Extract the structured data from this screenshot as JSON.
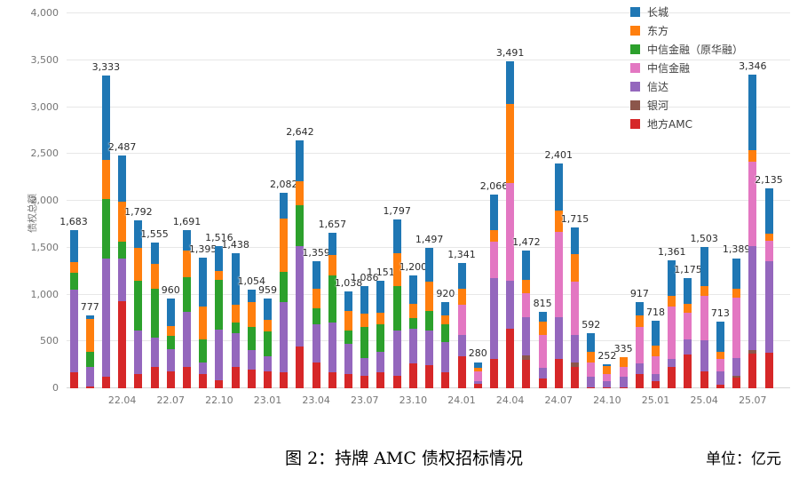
{
  "y_axis": {
    "title": "债权总额",
    "max": 4000,
    "step": 500,
    "tick_labels": [
      "0",
      "500",
      "1,000",
      "1,500",
      "2,000",
      "2,500",
      "3,000",
      "3,500",
      "4,000"
    ]
  },
  "caption": {
    "title": "图 2：持牌 AMC 债权招标情况",
    "unit": "单位：亿元"
  },
  "legend": {
    "position": "top-right",
    "items": [
      {
        "label": "长城",
        "color": "#1f77b4"
      },
      {
        "label": "东方",
        "color": "#ff7f0e"
      },
      {
        "label": "中信金融（原华融）",
        "color": "#2ca02c"
      },
      {
        "label": "中信金融",
        "color": "#e377c2"
      },
      {
        "label": "信达",
        "color": "#9467bd"
      },
      {
        "label": "银河",
        "color": "#8c564b"
      },
      {
        "label": "地方AMC",
        "color": "#d62728"
      }
    ]
  },
  "chart_data": {
    "type": "bar",
    "stacked": true,
    "title": "图 2：持牌 AMC 债权招标情况",
    "unit": "亿元",
    "ylabel": "债权总额",
    "ylim": [
      0,
      4000
    ],
    "grid": true,
    "x": [
      "22.01",
      "22.02",
      "22.03",
      "22.04",
      "22.05",
      "22.06",
      "22.07",
      "22.08",
      "22.09",
      "22.10",
      "22.11",
      "22.12",
      "23.01",
      "23.02",
      "23.03",
      "23.04",
      "23.05",
      "23.06",
      "23.07",
      "23.08",
      "23.09",
      "23.10",
      "23.11",
      "23.12",
      "24.01",
      "24.02",
      "24.03",
      "24.04",
      "24.05",
      "24.06",
      "24.07",
      "24.08",
      "24.09",
      "24.10",
      "24.11",
      "24.12",
      "25.01",
      "25.02",
      "25.03",
      "25.04",
      "25.05",
      "25.06",
      "25.07",
      "25.08"
    ],
    "x_tick_shown": [
      "22.04",
      "22.07",
      "22.10",
      "23.01",
      "23.04",
      "23.07",
      "23.10",
      "24.01",
      "24.04",
      "24.07",
      "24.10",
      "25.01",
      "25.04",
      "25.07"
    ],
    "totals": [
      1683,
      777,
      3333,
      2487,
      1792,
      1555,
      960,
      1691,
      1395,
      1516,
      1438,
      1054,
      959,
      2082,
      2642,
      1359,
      1657,
      1038,
      1086,
      1151,
      1797,
      1200,
      1497,
      920,
      1341,
      280,
      2066,
      3491,
      1472,
      815,
      2401,
      1715,
      592,
      252,
      335,
      917,
      718,
      1361,
      1175,
      1503,
      713,
      1389,
      3346,
      2135
    ],
    "series": [
      {
        "name": "地方AMC",
        "color": "#d62728",
        "values": [
          170,
          20,
          120,
          930,
          150,
          230,
          180,
          230,
          153,
          90,
          230,
          201,
          182,
          172,
          450,
          278,
          172,
          153,
          134,
          172,
          134,
          268,
          249,
          172,
          345,
          50,
          316,
          632,
          307,
          105,
          316,
          230,
          10,
          5,
          8,
          153,
          77,
          230,
          364,
          182,
          38,
          110,
          374,
          383
        ]
      },
      {
        "name": "银河",
        "color": "#8c564b",
        "values": [
          0,
          0,
          0,
          0,
          0,
          0,
          0,
          0,
          0,
          0,
          0,
          0,
          0,
          0,
          0,
          0,
          0,
          0,
          0,
          0,
          0,
          0,
          0,
          0,
          0,
          0,
          0,
          0,
          48,
          0,
          0,
          48,
          0,
          0,
          0,
          0,
          0,
          0,
          0,
          0,
          0,
          25,
          38,
          0
        ]
      },
      {
        "name": "信达",
        "color": "#9467bd",
        "values": [
          880,
          210,
          1260,
          450,
          470,
          310,
          240,
          584,
          125,
          535,
          355,
          211,
          163,
          748,
          1064,
          402,
          528,
          317,
          192,
          221,
          479,
          364,
          364,
          317,
          220,
          25,
          862,
          517,
          402,
          115,
          441,
          287,
          115,
          75,
          115,
          115,
          76,
          86,
          153,
          326,
          144,
          186,
          1102,
          968
        ]
      },
      {
        "name": "中信金融",
        "color": "#e377c2",
        "values": [
          0,
          0,
          0,
          0,
          0,
          0,
          0,
          0,
          0,
          0,
          0,
          0,
          0,
          0,
          0,
          0,
          0,
          0,
          0,
          0,
          0,
          0,
          0,
          0,
          326,
          110,
          383,
          1045,
          259,
          345,
          910,
          575,
          153,
          70,
          100,
          383,
          192,
          556,
          288,
          479,
          134,
          642,
          900,
          220
        ]
      },
      {
        "name": "中信金融（原华融）",
        "color": "#2ca02c",
        "values": [
          180,
          160,
          640,
          180,
          530,
          520,
          140,
          374,
          241,
          535,
          115,
          239,
          259,
          326,
          441,
          173,
          507,
          143,
          325,
          287,
          479,
          115,
          211,
          191,
          0,
          0,
          0,
          0,
          0,
          0,
          0,
          0,
          0,
          0,
          0,
          0,
          0,
          0,
          0,
          0,
          0,
          0,
          0,
          0
        ]
      },
      {
        "name": "东方",
        "color": "#ff7f0e",
        "values": [
          120,
          350,
          420,
          430,
          350,
          270,
          100,
          278,
          353,
          88,
          191,
          269,
          124,
          565,
          258,
          210,
          211,
          211,
          144,
          125,
          346,
          154,
          316,
          96,
          172,
          35,
          125,
          842,
          143,
          144,
          230,
          288,
          115,
          87,
          112,
          125,
          115,
          115,
          96,
          105,
          77,
          99,
          125,
          77
        ]
      },
      {
        "name": "长城",
        "color": "#1f77b4",
        "values": [
          333,
          37,
          893,
          497,
          292,
          225,
          300,
          225,
          523,
          268,
          547,
          134,
          231,
          271,
          429,
          296,
          239,
          214,
          291,
          346,
          359,
          299,
          357,
          144,
          278,
          60,
          380,
          455,
          313,
          106,
          504,
          287,
          199,
          15,
          0,
          141,
          258,
          374,
          274,
          411,
          320,
          327,
          807,
          487
        ]
      }
    ]
  }
}
